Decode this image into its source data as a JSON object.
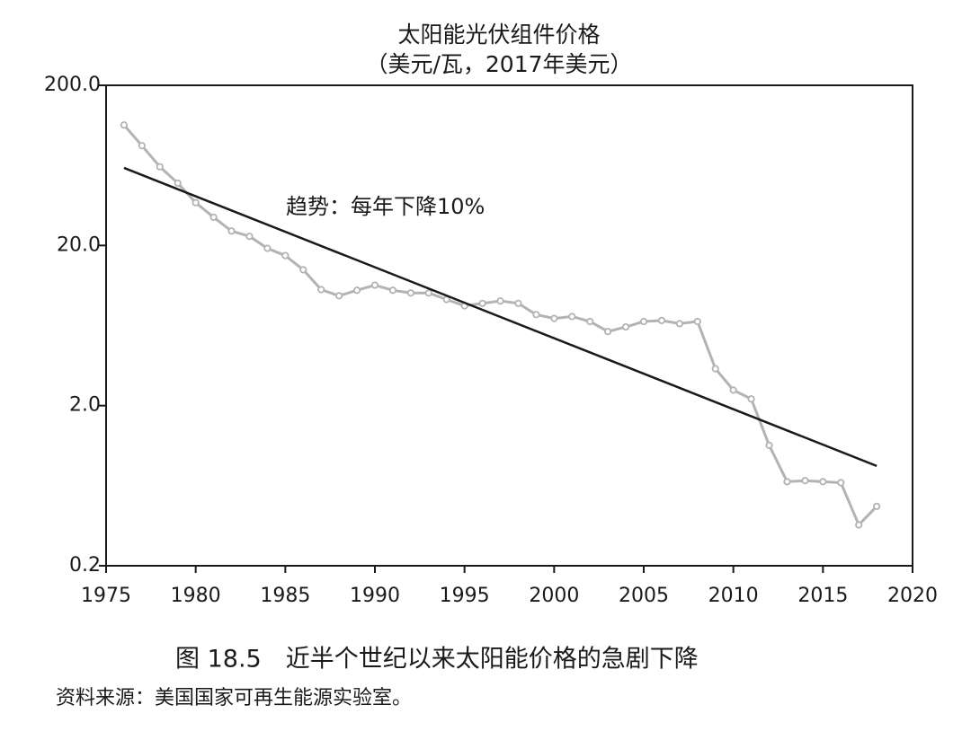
{
  "chart_data": {
    "type": "line",
    "title": "太阳能光伏组件价格",
    "subtitle": "（美元/瓦，2017年美元）",
    "annotation": "趋势：每年下降10%",
    "caption": "图 18.5　近半个世纪以来太阳能价格的急剧下降",
    "source": "资料来源：美国国家可再生能源实验室。",
    "x": [
      1976,
      1977,
      1978,
      1979,
      1980,
      1981,
      1982,
      1983,
      1984,
      1985,
      1986,
      1987,
      1988,
      1989,
      1990,
      1991,
      1992,
      1993,
      1994,
      1995,
      1996,
      1997,
      1998,
      1999,
      2000,
      2001,
      2002,
      2003,
      2004,
      2005,
      2006,
      2007,
      2008,
      2009,
      2010,
      2011,
      2012,
      2013,
      2014,
      2015,
      2016,
      2017,
      2018
    ],
    "series": [
      {
        "color": "#b3b3b3",
        "values": [
          113,
          84,
          62,
          49,
          37,
          30,
          24.6,
          22.8,
          19.2,
          17.3,
          14.1,
          10.6,
          9.7,
          10.5,
          11.3,
          10.5,
          10.1,
          10.1,
          9.2,
          8.4,
          8.7,
          9.0,
          8.7,
          7.4,
          7.0,
          7.2,
          6.7,
          5.8,
          6.2,
          6.7,
          6.8,
          6.5,
          6.7,
          3.4,
          2.5,
          2.2,
          1.13,
          0.67,
          0.68,
          0.67,
          0.66,
          0.36,
          0.47
        ]
      }
    ],
    "trend": {
      "color": "#1a1a1a",
      "x": [
        1976,
        2018
      ],
      "values": [
        61,
        0.84
      ]
    },
    "log_y": true,
    "xlim": [
      1975,
      2020
    ],
    "xticks": [
      1975,
      1980,
      1985,
      1990,
      1995,
      2000,
      2005,
      2010,
      2015,
      2020
    ],
    "ylim": [
      0.2,
      200
    ],
    "yticks": [
      {
        "value": 200,
        "label": "200.0"
      },
      {
        "value": 20,
        "label": "20.0"
      },
      {
        "value": 2,
        "label": "2.0"
      },
      0.2
    ]
  }
}
